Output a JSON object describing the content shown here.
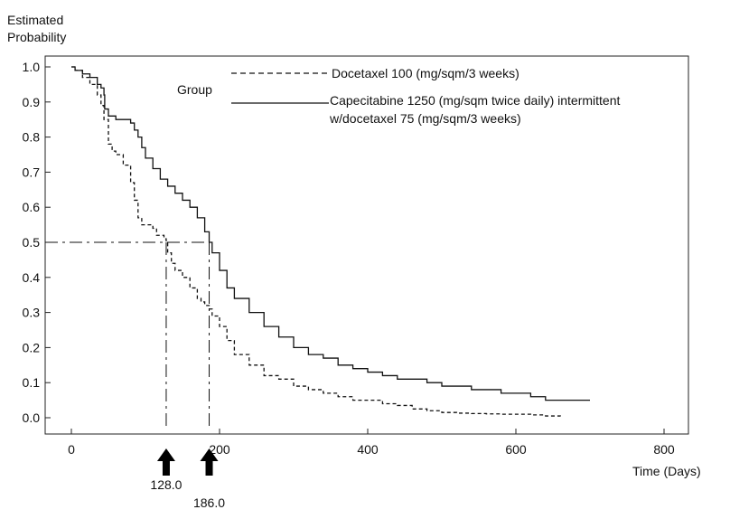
{
  "chart_data": {
    "type": "line",
    "ylabel_line1": "Estimated",
    "ylabel_line2": "Probability",
    "xlabel": "Time (Days)",
    "xlim": [
      0,
      800
    ],
    "ylim": [
      0.0,
      1.0
    ],
    "x_ticks": [
      "0",
      "200",
      "400",
      "600",
      "800"
    ],
    "y_ticks": [
      "0.0",
      "0.1",
      "0.2",
      "0.3",
      "0.4",
      "0.5",
      "0.6",
      "0.7",
      "0.8",
      "0.9",
      "1.0"
    ],
    "legend": {
      "title": "Group",
      "entries": [
        {
          "label": "Docetaxel 100 (mg/sqm/3 weeks)",
          "style": "dashed"
        },
        {
          "label_line1": "Capecitabine 1250 (mg/sqm twice daily) intermittent",
          "label_line2": "w/docetaxel 75 (mg/sqm/3 weeks)",
          "style": "solid"
        }
      ]
    },
    "series": [
      {
        "style": "dashed",
        "x": [
          0,
          5,
          15,
          25,
          35,
          40,
          44,
          50,
          55,
          60,
          70,
          80,
          85,
          90,
          95,
          100,
          110,
          115,
          120,
          125,
          128,
          130,
          135,
          140,
          150,
          160,
          170,
          175,
          180,
          186,
          190,
          200,
          210,
          220,
          240,
          260,
          280,
          300,
          320,
          340,
          360,
          380,
          400,
          420,
          440,
          460,
          480,
          500,
          520,
          540,
          560,
          580,
          600,
          620,
          640,
          660
        ],
        "y": [
          1.0,
          0.99,
          0.97,
          0.95,
          0.92,
          0.89,
          0.85,
          0.78,
          0.76,
          0.75,
          0.72,
          0.67,
          0.62,
          0.57,
          0.55,
          0.55,
          0.54,
          0.52,
          0.52,
          0.51,
          0.5,
          0.47,
          0.44,
          0.42,
          0.4,
          0.37,
          0.34,
          0.33,
          0.32,
          0.31,
          0.29,
          0.26,
          0.22,
          0.18,
          0.15,
          0.12,
          0.11,
          0.09,
          0.08,
          0.07,
          0.06,
          0.05,
          0.05,
          0.04,
          0.035,
          0.025,
          0.02,
          0.015,
          0.013,
          0.012,
          0.011,
          0.01,
          0.01,
          0.008,
          0.005,
          0.004
        ]
      },
      {
        "style": "solid",
        "x": [
          0,
          5,
          15,
          25,
          35,
          40,
          44,
          45,
          50,
          60,
          70,
          80,
          85,
          90,
          95,
          100,
          110,
          120,
          130,
          140,
          150,
          160,
          170,
          180,
          186,
          190,
          200,
          210,
          220,
          240,
          260,
          280,
          300,
          320,
          340,
          360,
          380,
          400,
          420,
          440,
          460,
          480,
          500,
          520,
          540,
          560,
          580,
          600,
          620,
          640,
          660,
          680,
          700
        ],
        "y": [
          1.0,
          0.99,
          0.98,
          0.97,
          0.95,
          0.94,
          0.92,
          0.88,
          0.86,
          0.85,
          0.85,
          0.84,
          0.82,
          0.8,
          0.77,
          0.74,
          0.71,
          0.68,
          0.66,
          0.64,
          0.62,
          0.6,
          0.57,
          0.53,
          0.5,
          0.47,
          0.42,
          0.37,
          0.34,
          0.3,
          0.26,
          0.23,
          0.2,
          0.18,
          0.17,
          0.15,
          0.14,
          0.13,
          0.12,
          0.11,
          0.11,
          0.1,
          0.09,
          0.09,
          0.08,
          0.08,
          0.07,
          0.07,
          0.06,
          0.05,
          0.05,
          0.05,
          0.05
        ]
      }
    ],
    "reference_line": {
      "y": 0.5,
      "x_ends": [
        128,
        186
      ]
    },
    "annotations": [
      {
        "label": "128.0",
        "x": 128
      },
      {
        "label": "186.0",
        "x": 186
      }
    ]
  }
}
